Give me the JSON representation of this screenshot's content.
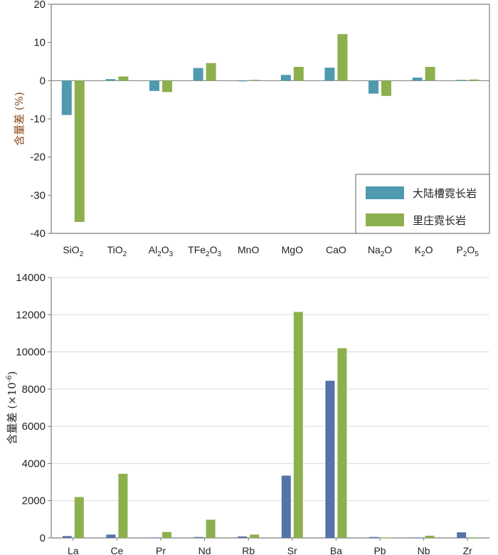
{
  "colors": {
    "top_series1": "#4F9AAE",
    "top_series2": "#8DB04E",
    "bottom_series1": "#5573A8",
    "bottom_series2": "#8DB04E",
    "axis": "#7A7A7A",
    "grid": "#DADADA",
    "ylabel_top": "#8B4513",
    "ylabel_bottom": "#222222"
  },
  "chart_data": [
    {
      "type": "bar",
      "title": "",
      "xlabel": "",
      "ylabel": "含量差 (%)",
      "ylim": [
        -40,
        20
      ],
      "yticks": [
        -40,
        -30,
        -20,
        -10,
        0,
        10,
        20
      ],
      "ytick_labels": [
        "-40",
        "-30",
        "-20",
        "-10",
        "0",
        "10",
        "20"
      ],
      "grid": false,
      "legend": "bottom-right",
      "categories": [
        {
          "base": "SiO",
          "sub": "2",
          "mid": "",
          "sub2": ""
        },
        {
          "base": "TiO",
          "sub": "2",
          "mid": "",
          "sub2": ""
        },
        {
          "base": "Al",
          "sub": "2",
          "mid": "O",
          "sub2": "3"
        },
        {
          "base": "TFe",
          "sub": "2",
          "mid": "O",
          "sub2": "3"
        },
        {
          "base": "MnO",
          "sub": "",
          "mid": "",
          "sub2": ""
        },
        {
          "base": "MgO",
          "sub": "",
          "mid": "",
          "sub2": ""
        },
        {
          "base": "CaO",
          "sub": "",
          "mid": "",
          "sub2": ""
        },
        {
          "base": "Na",
          "sub": "2",
          "mid": "O",
          "sub2": ""
        },
        {
          "base": "K",
          "sub": "2",
          "mid": "O",
          "sub2": ""
        },
        {
          "base": "P",
          "sub": "2",
          "mid": "O",
          "sub2": "5"
        }
      ],
      "series": [
        {
          "name": "大陆槽霓长岩",
          "values": [
            -9.0,
            0.4,
            -2.7,
            3.3,
            0.0,
            1.5,
            3.4,
            -3.4,
            0.8,
            0.2
          ]
        },
        {
          "name": "里庄霓长岩",
          "values": [
            -37.0,
            1.1,
            -3.0,
            4.6,
            0.2,
            3.6,
            12.2,
            -4.0,
            3.6,
            0.3
          ]
        }
      ]
    },
    {
      "type": "bar",
      "title": "",
      "xlabel": "",
      "ylabel": "含量差 (×10",
      "ylabel_sup": "-6",
      "ylabel_tail": ")",
      "ylim": [
        0,
        14000
      ],
      "yticks": [
        0,
        2000,
        4000,
        6000,
        8000,
        10000,
        12000,
        14000
      ],
      "ytick_labels": [
        "0",
        "2000",
        "4000",
        "6000",
        "8000",
        "10000",
        "12000",
        "14000"
      ],
      "grid": true,
      "legend": "none",
      "categories": [
        {
          "base": "La",
          "sub": "",
          "mid": "",
          "sub2": ""
        },
        {
          "base": "Ce",
          "sub": "",
          "mid": "",
          "sub2": ""
        },
        {
          "base": "Pr",
          "sub": "",
          "mid": "",
          "sub2": ""
        },
        {
          "base": "Nd",
          "sub": "",
          "mid": "",
          "sub2": ""
        },
        {
          "base": "Rb",
          "sub": "",
          "mid": "",
          "sub2": ""
        },
        {
          "base": "Sr",
          "sub": "",
          "mid": "",
          "sub2": ""
        },
        {
          "base": "Ba",
          "sub": "",
          "mid": "",
          "sub2": ""
        },
        {
          "base": "Pb",
          "sub": "",
          "mid": "",
          "sub2": ""
        },
        {
          "base": "Nb",
          "sub": "",
          "mid": "",
          "sub2": ""
        },
        {
          "base": "Zr",
          "sub": "",
          "mid": "",
          "sub2": ""
        }
      ],
      "series": [
        {
          "name": "大陆槽霓长岩",
          "values": [
            100,
            180,
            20,
            50,
            80,
            3350,
            8450,
            50,
            20,
            300
          ]
        },
        {
          "name": "里庄霓长岩",
          "values": [
            2200,
            3450,
            320,
            980,
            180,
            12150,
            10200,
            20,
            120,
            10
          ]
        }
      ]
    }
  ]
}
